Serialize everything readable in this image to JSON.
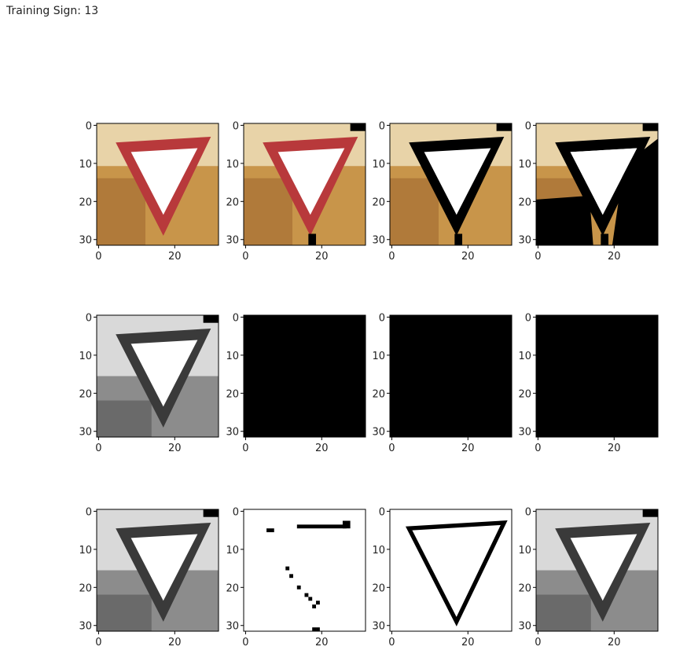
{
  "header": {
    "title": "Training Sign: 13"
  },
  "grid": {
    "rows": 3,
    "cols": 4
  },
  "axes": {
    "x_ticks": [
      "0",
      "20"
    ],
    "y_ticks": [
      "0",
      "10",
      "20",
      "30"
    ]
  },
  "panels": [
    {
      "name": "panel-original-color",
      "style": "color"
    },
    {
      "name": "panel-color-variant-1",
      "style": "color-dark-corner"
    },
    {
      "name": "panel-color-black-outline",
      "style": "color-black-edge"
    },
    {
      "name": "panel-color-threshold",
      "style": "color-threshold"
    },
    {
      "name": "panel-grayscale",
      "style": "gray"
    },
    {
      "name": "panel-black-1",
      "style": "black"
    },
    {
      "name": "panel-black-2",
      "style": "black"
    },
    {
      "name": "panel-black-3",
      "style": "black"
    },
    {
      "name": "panel-grayscale-2",
      "style": "gray"
    },
    {
      "name": "panel-edges-sparse",
      "style": "edges-sparse"
    },
    {
      "name": "panel-edges",
      "style": "edges"
    },
    {
      "name": "panel-grayscale-3",
      "style": "gray"
    }
  ],
  "colors": {
    "sign_red": "#b8393b",
    "background_warm": "#c8954a",
    "background_light": "#e8d3a8",
    "black": "#000000",
    "white": "#ffffff",
    "gray_dark": "#3a3a3a",
    "gray_mid": "#8c8c8c",
    "gray_light": "#d9d9d9"
  }
}
